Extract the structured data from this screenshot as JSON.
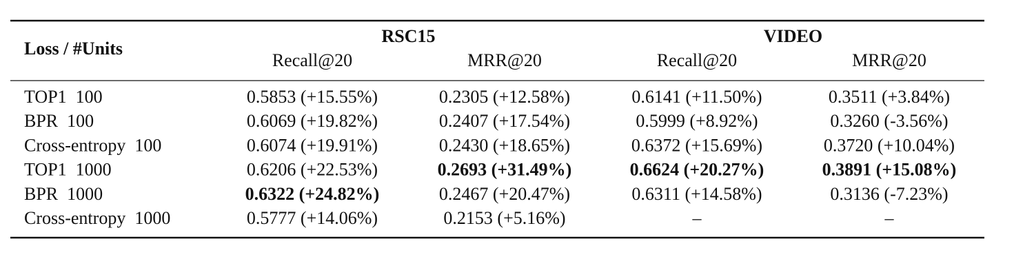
{
  "table": {
    "row_header": "Loss / #Units",
    "groups": [
      "RSC15",
      "VIDEO"
    ],
    "columns": [
      "Recall@20",
      "MRR@20",
      "Recall@20",
      "MRR@20"
    ],
    "rows": [
      {
        "label": "TOP1  100",
        "cells": [
          "0.5853 (+15.55%)",
          "0.2305 (+12.58%)",
          "0.6141 (+11.50%)",
          "0.3511 (+3.84%)"
        ],
        "bold": [
          false,
          false,
          false,
          false
        ]
      },
      {
        "label": "BPR  100",
        "cells": [
          "0.6069 (+19.82%)",
          "0.2407 (+17.54%)",
          "0.5999 (+8.92%)",
          "0.3260 (-3.56%)"
        ],
        "bold": [
          false,
          false,
          false,
          false
        ]
      },
      {
        "label": "Cross-entropy  100",
        "cells": [
          "0.6074 (+19.91%)",
          "0.2430 (+18.65%)",
          "0.6372 (+15.69%)",
          "0.3720 (+10.04%)"
        ],
        "bold": [
          false,
          false,
          false,
          false
        ]
      },
      {
        "label": "TOP1  1000",
        "cells": [
          "0.6206 (+22.53%)",
          "0.2693 (+31.49%)",
          "0.6624 (+20.27%)",
          "0.3891 (+15.08%)"
        ],
        "bold": [
          false,
          true,
          true,
          true
        ]
      },
      {
        "label": "BPR  1000",
        "cells": [
          "0.6322 (+24.82%)",
          "0.2467 (+20.47%)",
          "0.6311 (+14.58%)",
          "0.3136 (-7.23%)"
        ],
        "bold": [
          true,
          false,
          false,
          false
        ]
      },
      {
        "label": "Cross-entropy  1000",
        "cells": [
          "0.5777 (+14.06%)",
          "0.2153 (+5.16%)",
          "–",
          "–"
        ],
        "bold": [
          false,
          false,
          false,
          false
        ]
      }
    ]
  }
}
